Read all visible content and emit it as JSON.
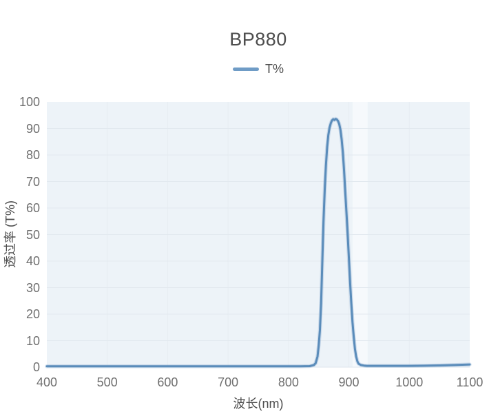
{
  "chart_data": {
    "type": "line",
    "title": "BP880",
    "xlabel": "波长(nm)",
    "ylabel": "透过率 (T%)",
    "xlim": [
      400,
      1100
    ],
    "ylim": [
      0,
      100
    ],
    "x_ticks": [
      400,
      500,
      600,
      700,
      800,
      900,
      1000,
      1100
    ],
    "y_ticks": [
      0,
      10,
      20,
      30,
      40,
      50,
      60,
      70,
      80,
      90,
      100
    ],
    "grid": true,
    "legend_position": "top-center",
    "highlight_band_nm": [
      906,
      931
    ],
    "styles": {
      "line_color": "#5a8cba",
      "line_halo_color": "rgba(106,152,196,0.28)",
      "legend_line_color": "#6f9cc6",
      "plot_bg": "#edf3f8",
      "h_grid_color": "#e2e9ef",
      "v_grid_color": "#e7edf2",
      "axis_edge_color": "#dde6ec",
      "highlight_band_color": "rgba(255,255,255,0.5)",
      "tick_text_color": "#6f6f6f",
      "label_text_color": "#4d4d4d"
    },
    "series": [
      {
        "name": "T%",
        "points": [
          [
            400,
            0.3
          ],
          [
            450,
            0.3
          ],
          [
            500,
            0.3
          ],
          [
            550,
            0.3
          ],
          [
            600,
            0.3
          ],
          [
            650,
            0.3
          ],
          [
            700,
            0.3
          ],
          [
            750,
            0.3
          ],
          [
            800,
            0.3
          ],
          [
            820,
            0.3
          ],
          [
            835,
            0.4
          ],
          [
            842,
            0.8
          ],
          [
            845,
            1.5
          ],
          [
            848,
            4
          ],
          [
            850,
            8
          ],
          [
            852,
            14
          ],
          [
            854,
            24
          ],
          [
            856,
            40
          ],
          [
            858,
            55
          ],
          [
            860,
            67
          ],
          [
            862,
            76
          ],
          [
            864,
            83
          ],
          [
            866,
            87.5
          ],
          [
            868,
            90.3
          ],
          [
            870,
            92
          ],
          [
            872,
            93
          ],
          [
            874,
            93.5
          ],
          [
            876,
            93.2
          ],
          [
            878,
            93.6
          ],
          [
            880,
            93.4
          ],
          [
            882,
            92.8
          ],
          [
            884,
            91.7
          ],
          [
            886,
            89.5
          ],
          [
            888,
            86
          ],
          [
            890,
            81
          ],
          [
            892,
            74
          ],
          [
            894,
            66
          ],
          [
            896,
            58
          ],
          [
            898,
            50
          ],
          [
            900,
            41
          ],
          [
            902,
            32
          ],
          [
            904,
            24
          ],
          [
            906,
            17
          ],
          [
            908,
            11.5
          ],
          [
            910,
            7
          ],
          [
            912,
            4
          ],
          [
            914,
            2.2
          ],
          [
            916,
            1.3
          ],
          [
            920,
            0.8
          ],
          [
            925,
            0.6
          ],
          [
            930,
            0.5
          ],
          [
            950,
            0.5
          ],
          [
            975,
            0.5
          ],
          [
            1000,
            0.5
          ],
          [
            1025,
            0.55
          ],
          [
            1050,
            0.65
          ],
          [
            1075,
            0.8
          ],
          [
            1100,
            1.0
          ]
        ]
      }
    ]
  }
}
